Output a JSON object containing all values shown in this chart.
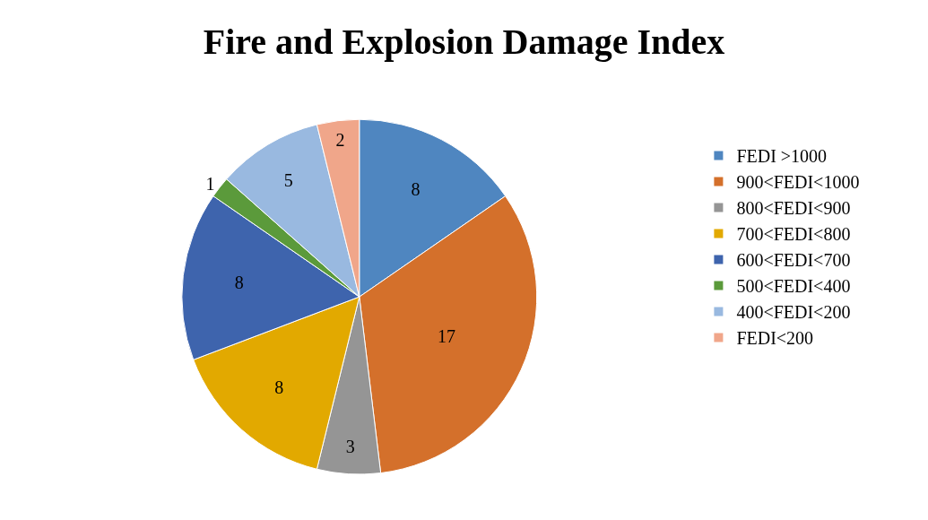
{
  "chart_data": {
    "type": "pie",
    "title": "Fire and Explosion Damage Index",
    "categories": [
      "FEDI >1000",
      "900<FEDI<1000",
      "800<FEDI<900",
      "700<FEDI<800",
      "600<FEDI<700",
      "500<FEDI<400",
      "400<FEDI<200",
      "FEDI<200"
    ],
    "values": [
      8,
      17,
      3,
      8,
      8,
      1,
      5,
      2
    ],
    "colors": [
      "#4f86c0",
      "#d4702b",
      "#959595",
      "#e2a900",
      "#3e64ad",
      "#5b9a3b",
      "#99b9e0",
      "#f0a68a"
    ],
    "data_labels": true,
    "legend": "right"
  }
}
